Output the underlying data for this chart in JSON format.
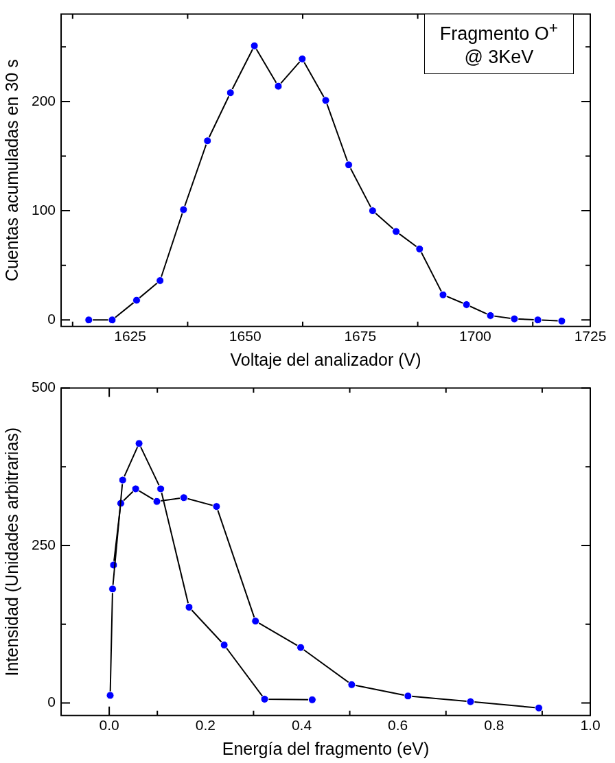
{
  "chart_data": [
    {
      "type": "line",
      "xlabel": "Voltaje del analizador (V)",
      "ylabel": "Cuentas acumuladas en 30 s",
      "annotations": [
        "Fragmento O$^{+}$\n@ 3KeV"
      ],
      "marker": "circle",
      "line_style": "solid",
      "legend": false,
      "xlim": [
        1610,
        1725
      ],
      "xticks": [
        {
          "value": 1612.5,
          "label": null
        },
        1625,
        {
          "value": 1637.5,
          "label": null
        },
        1650,
        {
          "value": 1662.5,
          "label": null
        },
        1675,
        {
          "value": 1687.5,
          "label": null
        },
        1700,
        {
          "value": 1712.5,
          "label": null
        },
        1725
      ],
      "ylim": [
        -6,
        280
      ],
      "yticks": [
        0,
        {
          "value": 50,
          "label": null
        },
        100,
        {
          "value": 150,
          "label": null
        },
        200,
        {
          "value": 250,
          "label": null
        }
      ],
      "series": [
        {
          "color": "#0000ff",
          "x": [
            1616,
            1621.1,
            1626.4,
            1631.5,
            1636.6,
            1641.8,
            1646.8,
            1652,
            1657.2,
            1662.4,
            1667.5,
            1672.5,
            1677.7,
            1682.8,
            1687.9,
            1693,
            1698.1,
            1703.3,
            1708.5,
            1713.6,
            1718.8
          ],
          "values": [
            0,
            0,
            18,
            36,
            101,
            164,
            208,
            251,
            214,
            239,
            201,
            142,
            100,
            81,
            65,
            23,
            14,
            4,
            1,
            0,
            -1
          ]
        }
      ]
    },
    {
      "type": "line",
      "xlabel": "Energía del fragmento (eV)",
      "ylabel": "Intensidad (Unidades arbitrarias)",
      "marker": "circle",
      "line_style": "solid",
      "legend": false,
      "xlim": [
        -0.1,
        1.0
      ],
      "xticks": [
        {
          "value": 0,
          "label": "0.0"
        },
        {
          "value": 0.1,
          "label": null
        },
        0.2,
        {
          "value": 0.3,
          "label": null
        },
        0.4,
        {
          "value": 0.5,
          "label": null
        },
        0.6,
        {
          "value": 0.7,
          "label": null
        },
        0.8,
        {
          "value": 0.9,
          "label": null
        },
        {
          "value": 1,
          "label": "1.0"
        }
      ],
      "ylim": [
        -20,
        500
      ],
      "yticks": [
        0,
        {
          "value": 125,
          "label": null
        },
        250,
        {
          "value": 375,
          "label": null
        },
        500
      ],
      "series": [
        {
          "color": "#0000ff",
          "x": [
            0.002,
            0.007,
            0.028,
            0.062,
            0.107,
            0.166,
            0.239,
            0.323,
            0.422
          ],
          "values": [
            12,
            181,
            354,
            412,
            340,
            152,
            92,
            6,
            5
          ]
        },
        {
          "color": "#0000ff",
          "x": [
            0.009,
            0.024,
            0.055,
            0.099,
            0.155,
            0.223,
            0.304,
            0.398,
            0.504,
            0.621,
            0.751,
            0.893
          ],
          "values": [
            219,
            317,
            340,
            320,
            326,
            312,
            130,
            88,
            29,
            11,
            2,
            -8
          ]
        }
      ]
    }
  ]
}
